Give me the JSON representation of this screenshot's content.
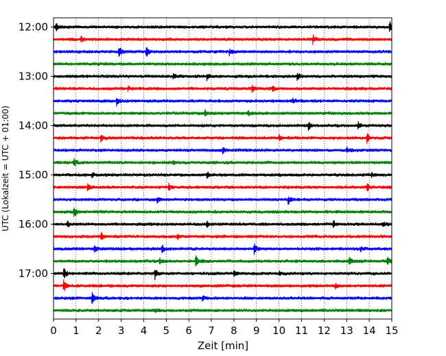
{
  "chart_data": {
    "type": "line",
    "subtype": "helicorder",
    "title": "",
    "xlabel": "Zeit  [min]",
    "ylabel": "UTC (Lokalzeit = UTC + 01:00)",
    "xlim": [
      0,
      15
    ],
    "x_ticks": [
      0,
      1,
      2,
      3,
      4,
      5,
      6,
      7,
      8,
      9,
      10,
      11,
      12,
      13,
      14,
      15
    ],
    "x_grid": "dotted vertical lines at every minute",
    "trace_colors": [
      "#000000",
      "#ff0000",
      "#0000ff",
      "#008000"
    ],
    "trace_interval_minutes": 15,
    "hour_labels": [
      {
        "label": "12:00",
        "trace": 0
      },
      {
        "label": "13:00",
        "trace": 4
      },
      {
        "label": "14:00",
        "trace": 8
      },
      {
        "label": "15:00",
        "trace": 12
      },
      {
        "label": "16:00",
        "trace": 16
      },
      {
        "label": "17:00",
        "trace": 20
      }
    ],
    "series": [
      {
        "start": "12:00",
        "events": [
          [
            0.1,
            0.7
          ],
          [
            14.9,
            0.9
          ]
        ]
      },
      {
        "start": "12:15",
        "events": [
          [
            1.2,
            0.5
          ],
          [
            11.5,
            0.8
          ]
        ]
      },
      {
        "start": "12:30",
        "events": [
          [
            2.9,
            1.0
          ],
          [
            4.1,
            0.8
          ],
          [
            7.8,
            0.5
          ]
        ]
      },
      {
        "start": "12:45",
        "events": []
      },
      {
        "start": "13:00",
        "events": [
          [
            5.3,
            0.5
          ],
          [
            6.8,
            0.6
          ],
          [
            10.8,
            0.9
          ]
        ]
      },
      {
        "start": "13:15",
        "events": [
          [
            3.3,
            0.4
          ],
          [
            8.8,
            0.5
          ],
          [
            9.7,
            0.4
          ]
        ]
      },
      {
        "start": "13:30",
        "events": [
          [
            2.8,
            0.7
          ],
          [
            10.6,
            0.4
          ]
        ]
      },
      {
        "start": "13:45",
        "events": [
          [
            6.7,
            0.5
          ],
          [
            8.6,
            0.4
          ]
        ]
      },
      {
        "start": "14:00",
        "events": [
          [
            11.3,
            0.8
          ],
          [
            13.5,
            0.5
          ]
        ]
      },
      {
        "start": "14:15",
        "events": [
          [
            2.1,
            0.7
          ],
          [
            10.0,
            0.5
          ],
          [
            13.9,
            0.8
          ]
        ]
      },
      {
        "start": "14:30",
        "events": [
          [
            7.5,
            0.5
          ],
          [
            13.0,
            0.6
          ]
        ]
      },
      {
        "start": "14:45",
        "events": [
          [
            0.9,
            0.6
          ],
          [
            5.3,
            0.4
          ]
        ]
      },
      {
        "start": "15:00",
        "events": [
          [
            1.7,
            0.4
          ],
          [
            6.8,
            0.5
          ],
          [
            14.1,
            0.4
          ]
        ]
      },
      {
        "start": "15:15",
        "events": [
          [
            1.5,
            0.8
          ],
          [
            5.1,
            0.6
          ],
          [
            13.9,
            0.6
          ]
        ]
      },
      {
        "start": "15:30",
        "events": [
          [
            4.6,
            0.5
          ],
          [
            10.4,
            0.9
          ]
        ]
      },
      {
        "start": "15:45",
        "events": [
          [
            0.9,
            0.9
          ]
        ]
      },
      {
        "start": "16:00",
        "events": [
          [
            0.6,
            0.5
          ],
          [
            6.8,
            0.5
          ],
          [
            12.4,
            0.6
          ],
          [
            14.6,
            0.5
          ]
        ]
      },
      {
        "start": "16:15",
        "events": [
          [
            2.1,
            0.6
          ],
          [
            5.5,
            0.4
          ]
        ]
      },
      {
        "start": "16:30",
        "events": [
          [
            1.8,
            0.6
          ],
          [
            4.8,
            0.9
          ],
          [
            8.9,
            1.0
          ],
          [
            13.6,
            0.5
          ]
        ]
      },
      {
        "start": "16:45",
        "events": [
          [
            4.7,
            0.6
          ],
          [
            6.3,
            1.0
          ],
          [
            13.1,
            0.9
          ],
          [
            14.8,
            0.7
          ]
        ]
      },
      {
        "start": "17:00",
        "events": [
          [
            0.45,
            1.0
          ],
          [
            4.5,
            0.9
          ],
          [
            8.0,
            0.5
          ],
          [
            10.0,
            0.4
          ]
        ]
      },
      {
        "start": "17:15",
        "events": [
          [
            0.45,
            1.2
          ],
          [
            12.5,
            0.6
          ]
        ]
      },
      {
        "start": "17:30",
        "events": [
          [
            1.7,
            1.0
          ],
          [
            6.6,
            0.4
          ]
        ]
      },
      {
        "start": "17:45",
        "events": [
          [
            4.5,
            0.4
          ]
        ]
      }
    ]
  }
}
